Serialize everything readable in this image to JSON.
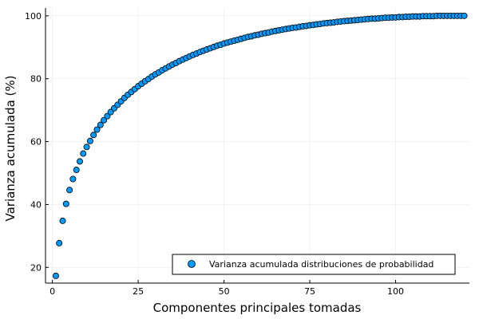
{
  "chart_data": {
    "type": "scatter",
    "xlabel": "Componentes principales tomadas",
    "ylabel": "Varianza acumulada (%)",
    "xlim": [
      -2,
      121.5
    ],
    "ylim": [
      15,
      102.5
    ],
    "xticks": [
      0,
      25,
      50,
      75,
      100
    ],
    "yticks": [
      20,
      40,
      60,
      80,
      100
    ],
    "grid": true,
    "legend_position": "bottom-right",
    "colors": {
      "marker_fill": "#009AFA",
      "marker_stroke": "#000000"
    },
    "series": [
      {
        "name": "Varianza acumulada distribuciones de probabilidad",
        "x": [
          1,
          2,
          3,
          4,
          5,
          6,
          7,
          8,
          9,
          10,
          11,
          12,
          13,
          14,
          15,
          16,
          17,
          18,
          19,
          20,
          21,
          22,
          23,
          24,
          25,
          26,
          27,
          28,
          29,
          30,
          31,
          32,
          33,
          34,
          35,
          36,
          37,
          38,
          39,
          40,
          41,
          42,
          43,
          44,
          45,
          46,
          47,
          48,
          49,
          50,
          51,
          52,
          53,
          54,
          55,
          56,
          57,
          58,
          59,
          60,
          61,
          62,
          63,
          64,
          65,
          66,
          67,
          68,
          69,
          70,
          71,
          72,
          73,
          74,
          75,
          76,
          77,
          78,
          79,
          80,
          81,
          82,
          83,
          84,
          85,
          86,
          87,
          88,
          89,
          90,
          91,
          92,
          93,
          94,
          95,
          96,
          97,
          98,
          99,
          100,
          101,
          102,
          103,
          104,
          105,
          106,
          107,
          108,
          109,
          110,
          111,
          112,
          113,
          114,
          115,
          116,
          117,
          118,
          119,
          120
        ],
        "y": [
          17.3,
          27.7,
          34.8,
          40.2,
          44.6,
          48.1,
          51.0,
          53.7,
          56.2,
          58.3,
          60.2,
          62.1,
          63.8,
          65.3,
          66.8,
          68.1,
          69.4,
          70.6,
          71.7,
          72.8,
          73.9,
          74.9,
          75.8,
          76.7,
          77.6,
          78.4,
          79.2,
          79.9,
          80.7,
          81.4,
          82.0,
          82.7,
          83.3,
          83.9,
          84.5,
          85.0,
          85.6,
          86.1,
          86.6,
          87.1,
          87.6,
          88.0,
          88.5,
          88.9,
          89.3,
          89.7,
          90.1,
          90.5,
          90.8,
          91.2,
          91.5,
          91.8,
          92.1,
          92.4,
          92.7,
          93.0,
          93.3,
          93.5,
          93.8,
          94.0,
          94.3,
          94.5,
          94.7,
          95.0,
          95.2,
          95.4,
          95.6,
          95.8,
          96.0,
          96.2,
          96.3,
          96.5,
          96.7,
          96.8,
          97.0,
          97.1,
          97.3,
          97.4,
          97.6,
          97.7,
          97.8,
          97.9,
          98.1,
          98.2,
          98.3,
          98.4,
          98.5,
          98.6,
          98.7,
          98.8,
          98.9,
          99.0,
          99.1,
          99.1,
          99.2,
          99.3,
          99.4,
          99.4,
          99.5,
          99.5,
          99.6,
          99.6,
          99.7,
          99.7,
          99.8,
          99.8,
          99.8,
          99.9,
          99.9,
          99.9,
          99.9,
          100.0,
          100.0,
          100.0,
          100.0,
          100.0,
          100.0,
          100.0,
          100.0,
          100.0
        ]
      }
    ]
  }
}
